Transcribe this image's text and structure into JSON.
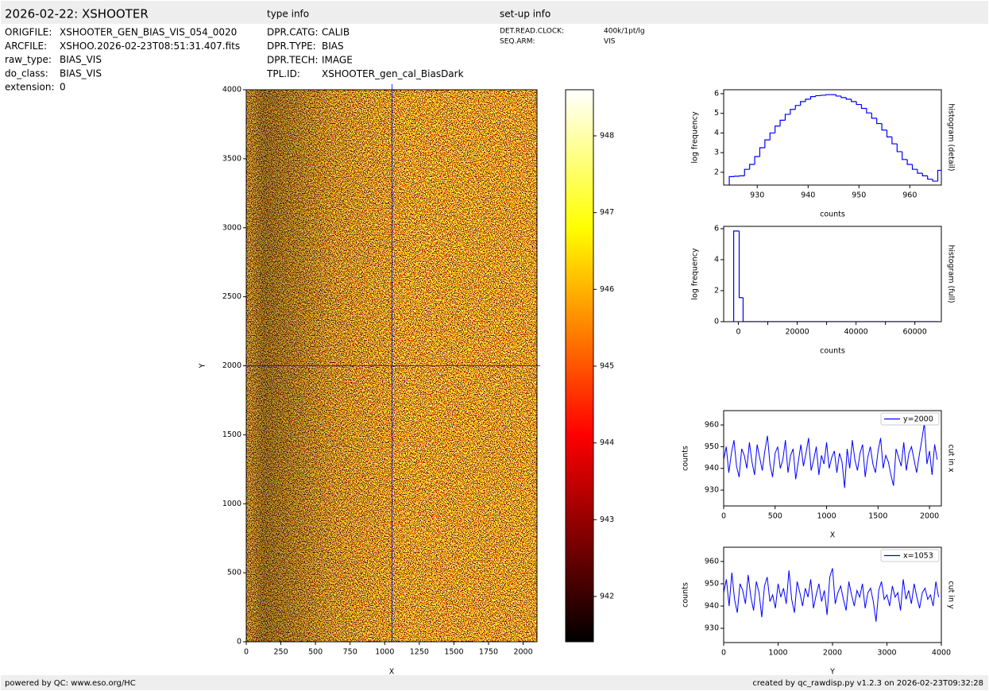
{
  "header": {
    "title": "2026-02-22: XSHOOTER",
    "type_info_heading": "type info",
    "setup_info_heading": "set-up info"
  },
  "file_info": [
    {
      "key": "ORIGFILE:",
      "value": "XSHOOTER_GEN_BIAS_VIS_054_0020"
    },
    {
      "key": "ARCFILE:",
      "value": "XSHOO.2026-02-23T08:51:31.407.fits"
    },
    {
      "key": "raw_type:",
      "value": "BIAS_VIS"
    },
    {
      "key": "do_class:",
      "value": "BIAS_VIS"
    },
    {
      "key": "extension:",
      "value": "0"
    }
  ],
  "type_info": [
    {
      "key": "DPR.CATG:",
      "value": "CALIB"
    },
    {
      "key": "DPR.TYPE:",
      "value": "BIAS"
    },
    {
      "key": "DPR.TECH:",
      "value": "IMAGE"
    },
    {
      "key": "TPL.ID:",
      "value": "XSHOOTER_gen_cal_BiasDark"
    }
  ],
  "setup_info": [
    {
      "key": "DET.READ.CLOCK:",
      "value": "400k/1pt/lg"
    },
    {
      "key": "SEQ.ARM:",
      "value": "VIS"
    }
  ],
  "footer": {
    "left": "powered by QC: www.eso.org/HC",
    "right": "created by qc_rawdisp.py v1.2.3 on 2026-02-23T09:32:28"
  },
  "chart_data": [
    {
      "type": "image",
      "colormap": "hot",
      "xlabel": "X",
      "ylabel": "Y",
      "xlim": [
        0,
        2100
      ],
      "xticks": [
        0,
        250,
        500,
        750,
        1000,
        1250,
        1500,
        1750,
        2000
      ],
      "ylim": [
        0,
        4000
      ],
      "yticks": [
        0,
        500,
        1000,
        1500,
        2000,
        2500,
        3000,
        3500,
        4000
      ],
      "crosshair": {
        "x": 1053,
        "y": 2000
      },
      "crosshair_color": "#0000ff"
    },
    {
      "type": "colorbar",
      "colormap": "hot",
      "ylim": [
        941.41,
        948.6
      ],
      "yticks": [
        942,
        943,
        944,
        945,
        946,
        947,
        948
      ]
    },
    {
      "type": "histogram",
      "xlabel": "counts",
      "ylabel": "log frequency",
      "side_label": "histogram (detail)",
      "color": "#0000ff",
      "xlim": [
        923.4,
        966.2
      ],
      "xticks": [
        930,
        940,
        950,
        960
      ],
      "ylim": [
        1.35,
        6.2
      ],
      "yticks": [
        2,
        3,
        4,
        5,
        6
      ],
      "bins": [
        924.5,
        925.5,
        926.5,
        927.5,
        928.5,
        929.5,
        930.5,
        931.5,
        932.5,
        933.5,
        934.5,
        935.5,
        936.5,
        937.5,
        938.5,
        939.5,
        940.5,
        941.5,
        942.5,
        943.5,
        944.5,
        945.5,
        946.5,
        947.5,
        948.5,
        949.5,
        950.5,
        951.5,
        952.5,
        953.5,
        954.5,
        955.5,
        956.5,
        957.5,
        958.5,
        959.5,
        960.5,
        961.5,
        962.5,
        963.5,
        964.5,
        965.5,
        966.5
      ],
      "values": [
        1.78,
        1.8,
        1.82,
        2.15,
        2.4,
        2.8,
        3.25,
        3.65,
        4.0,
        4.35,
        4.65,
        4.95,
        5.2,
        5.4,
        5.6,
        5.72,
        5.85,
        5.9,
        5.92,
        5.95,
        5.95,
        5.88,
        5.8,
        5.72,
        5.6,
        5.45,
        5.25,
        5.02,
        4.75,
        4.48,
        4.15,
        3.8,
        3.45,
        3.05,
        2.65,
        2.4,
        2.15,
        1.95,
        1.82,
        1.65,
        1.55,
        2.1
      ]
    },
    {
      "type": "histogram",
      "xlabel": "counts",
      "ylabel": "log frequency",
      "side_label": "histogram (full)",
      "color": "#0000ff",
      "xlim": [
        -5000,
        69000
      ],
      "xticks": [
        0,
        20000,
        40000,
        60000
      ],
      "xminor": [
        10000,
        30000,
        50000
      ],
      "ylim": [
        0,
        6.15
      ],
      "yticks": [
        0,
        2,
        4,
        6
      ],
      "bins": [
        -1600,
        270,
        1600,
        68000
      ],
      "values": [
        5.85,
        1.55,
        0
      ]
    },
    {
      "type": "line",
      "xlabel": "X",
      "ylabel": "counts",
      "side_label": "cut in x",
      "legend": "upper right",
      "xlim": [
        0,
        2115
      ],
      "xticks": [
        0,
        500,
        1000,
        1500,
        2000
      ],
      "ylim": [
        922.7,
        966.6
      ],
      "yticks": [
        930,
        940,
        950,
        960
      ],
      "x": [
        0,
        25,
        50,
        75,
        100,
        125,
        150,
        175,
        200,
        225,
        250,
        275,
        300,
        325,
        350,
        375,
        400,
        425,
        450,
        475,
        500,
        525,
        550,
        575,
        600,
        625,
        650,
        675,
        700,
        725,
        750,
        775,
        800,
        825,
        850,
        875,
        900,
        925,
        950,
        975,
        1000,
        1025,
        1050,
        1075,
        1100,
        1125,
        1150,
        1175,
        1200,
        1225,
        1250,
        1275,
        1300,
        1325,
        1350,
        1375,
        1400,
        1425,
        1450,
        1475,
        1500,
        1525,
        1550,
        1575,
        1600,
        1625,
        1650,
        1675,
        1700,
        1725,
        1750,
        1775,
        1800,
        1825,
        1850,
        1875,
        1900,
        1925,
        1950,
        1975,
        2000,
        2025,
        2050,
        2075
      ],
      "series": [
        {
          "name": "y=2000",
          "color": "#0000ff",
          "values": [
            944,
            950,
            938,
            947,
            953,
            941,
            936,
            949,
            946,
            940,
            952,
            943,
            937,
            951,
            945,
            939,
            948,
            955,
            942,
            936,
            947,
            950,
            940,
            944,
            953,
            938,
            946,
            949,
            935,
            943,
            951,
            941,
            947,
            954,
            939,
            944,
            950,
            937,
            946,
            942,
            952,
            940,
            945,
            948,
            938,
            947,
            943,
            931,
            949,
            940,
            953,
            944,
            939,
            947,
            951,
            936,
            945,
            950,
            942,
            938,
            948,
            954,
            940,
            946,
            943,
            937,
            932,
            949,
            945,
            941,
            952,
            939,
            947,
            950,
            944,
            938,
            946,
            953,
            961,
            942,
            948,
            937,
            951,
            944
          ]
        }
      ]
    },
    {
      "type": "line",
      "xlabel": "Y",
      "ylabel": "counts",
      "side_label": "cut in y",
      "legend": "upper right",
      "xlim": [
        0,
        4000
      ],
      "xticks": [
        0,
        1000,
        2000,
        3000,
        4000
      ],
      "ylim": [
        923.6,
        966.4
      ],
      "yticks": [
        930,
        940,
        950,
        960
      ],
      "x": [
        0,
        50,
        100,
        150,
        200,
        250,
        300,
        350,
        400,
        450,
        500,
        550,
        600,
        650,
        700,
        750,
        800,
        850,
        900,
        950,
        1000,
        1050,
        1100,
        1150,
        1200,
        1250,
        1300,
        1350,
        1400,
        1450,
        1500,
        1550,
        1600,
        1650,
        1700,
        1750,
        1800,
        1850,
        1900,
        1950,
        2000,
        2050,
        2100,
        2150,
        2200,
        2250,
        2300,
        2350,
        2400,
        2450,
        2500,
        2550,
        2600,
        2650,
        2700,
        2750,
        2800,
        2850,
        2900,
        2950,
        3000,
        3050,
        3100,
        3150,
        3200,
        3250,
        3300,
        3350,
        3400,
        3450,
        3500,
        3550,
        3600,
        3650,
        3700,
        3750,
        3800,
        3850,
        3900,
        3950
      ],
      "series": [
        {
          "name": "x=1053",
          "color": "#0000ff",
          "values": [
            946,
            952,
            940,
            955,
            943,
            937,
            950,
            947,
            941,
            954,
            944,
            938,
            951,
            946,
            935,
            949,
            953,
            942,
            945,
            939,
            950,
            944,
            948,
            941,
            956,
            943,
            937,
            951,
            946,
            940,
            948,
            944,
            952,
            939,
            945,
            950,
            942,
            947,
            936,
            953,
            957,
            941,
            946,
            949,
            943,
            938,
            951,
            945,
            940,
            947,
            944,
            950,
            939,
            946,
            948,
            942,
            933,
            947,
            951,
            943,
            945,
            940,
            949,
            944,
            946,
            938,
            952,
            943,
            947,
            941,
            950,
            944,
            939,
            946,
            948,
            943,
            945,
            940,
            951,
            944
          ]
        }
      ]
    }
  ]
}
